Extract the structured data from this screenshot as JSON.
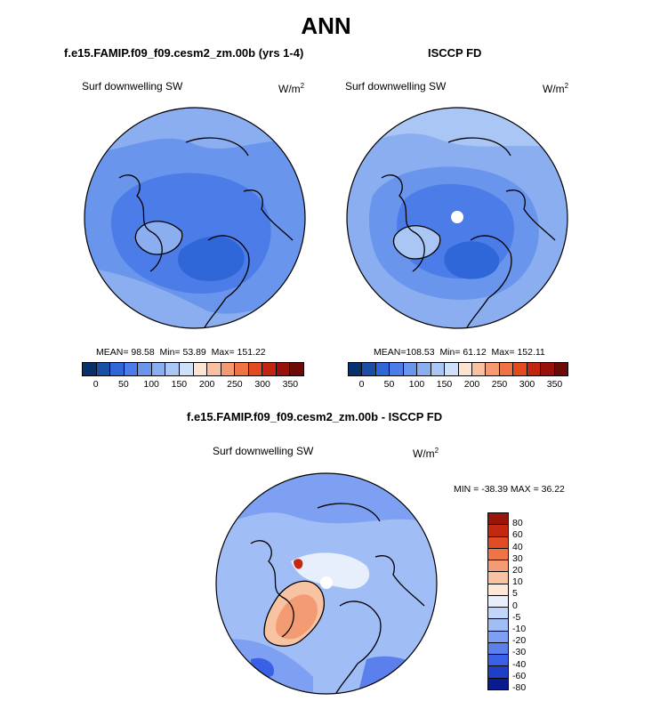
{
  "main_title": "ANN",
  "colors": {
    "abs": [
      "#08306b",
      "#1a4fa8",
      "#2f66d8",
      "#4c7ce8",
      "#6a95ec",
      "#8aaef0",
      "#aac6f5",
      "#cfe0fb",
      "#fde4d2",
      "#f9bfa0",
      "#f59a70",
      "#f07345",
      "#e24a20",
      "#c2260f",
      "#98120b",
      "#6b0a06"
    ],
    "diff": [
      "#0a1b8f",
      "#1f3fc7",
      "#3a60e6",
      "#5b80ec",
      "#7ea0f2",
      "#a0bdf6",
      "#c2d6f9",
      "#e7eefc",
      "#fde7d6",
      "#f8c3a2",
      "#f39b73",
      "#ef7548",
      "#e04d24",
      "#c4290f",
      "#991509"
    ]
  },
  "panels": {
    "model": {
      "title": "f.e15.FAMIP.f09_f09.cesm2_zm.00b (yrs 1-4)",
      "variable": "Surf downwelling SW",
      "units_base": "W/m",
      "units_exp": "2",
      "mean_label": "MEAN=",
      "mean": "98.58",
      "min_label": "Min=",
      "min": "53.89",
      "max_label": "Max=",
      "max": "151.22"
    },
    "obs": {
      "title": "ISCCP FD",
      "variable": "Surf downwelling SW",
      "units_base": "W/m",
      "units_exp": "2",
      "mean_label": "MEAN=",
      "mean": "108.53",
      "min_label": "Min=",
      "min": "61.12",
      "max_label": "Max=",
      "max": "152.11"
    },
    "diff": {
      "title": "f.e15.FAMIP.f09_f09.cesm2_zm.00b - ISCCP FD",
      "variable": "Surf downwelling SW",
      "units_base": "W/m",
      "units_exp": "2",
      "minmax": "MIN = -38.39 MAX =  36.22"
    }
  },
  "chart_data": [
    {
      "type": "heatmap",
      "title": "f.e15.FAMIP.f09_f09.cesm2_zm.00b (yrs 1-4)",
      "subtitle": "Surf downwelling SW",
      "units": "W/m2",
      "projection": "north polar stereographic",
      "mean": 98.58,
      "min": 53.89,
      "max": 151.22,
      "colorbar_ticks": [
        "0",
        "50",
        "100",
        "150",
        "200",
        "250",
        "300",
        "350"
      ]
    },
    {
      "type": "heatmap",
      "title": "ISCCP FD",
      "subtitle": "Surf downwelling SW",
      "units": "W/m2",
      "projection": "north polar stereographic",
      "mean": 108.53,
      "min": 61.12,
      "max": 152.11,
      "colorbar_ticks": [
        "0",
        "50",
        "100",
        "150",
        "200",
        "250",
        "300",
        "350"
      ]
    },
    {
      "type": "heatmap",
      "title": "f.e15.FAMIP.f09_f09.cesm2_zm.00b - ISCCP FD",
      "subtitle": "Surf downwelling SW",
      "units": "W/m2",
      "projection": "north polar stereographic",
      "min": -38.39,
      "max": 36.22,
      "colorbar_ticks": [
        "80",
        "60",
        "40",
        "30",
        "20",
        "10",
        "5",
        "0",
        "-5",
        "-10",
        "-20",
        "-30",
        "-40",
        "-60",
        "-80"
      ]
    }
  ]
}
